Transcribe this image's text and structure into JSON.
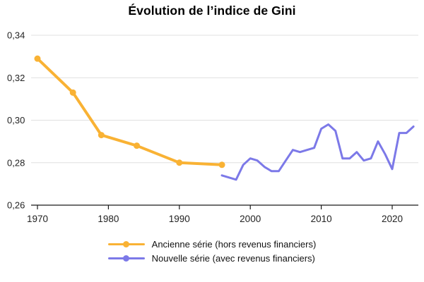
{
  "chart_data": {
    "type": "line",
    "title": "Évolution de l’indice de Gini",
    "xlabel": "",
    "ylabel": "",
    "ylim": [
      0.26,
      0.34
    ],
    "xlim": [
      1969,
      2024
    ],
    "grid": "horizontal",
    "legend_position": "bottom",
    "y_ticks": [
      {
        "label": "0,34",
        "value": 0.34
      },
      {
        "label": "0,32",
        "value": 0.32
      },
      {
        "label": "0,30",
        "value": 0.3
      },
      {
        "label": "0,28",
        "value": 0.28
      },
      {
        "label": "0,26",
        "value": 0.26
      }
    ],
    "x_ticks": [
      {
        "label": "1970",
        "value": 1970
      },
      {
        "label": "1980",
        "value": 1980
      },
      {
        "label": "1990",
        "value": 1990
      },
      {
        "label": "2000",
        "value": 2000
      },
      {
        "label": "2010",
        "value": 2010
      },
      {
        "label": "2020",
        "value": 2020
      }
    ],
    "series": [
      {
        "name": "Ancienne série (hors revenus financiers)",
        "color": "#F9B234",
        "markers": true,
        "x": [
          1970,
          1975,
          1979,
          1984,
          1990,
          1996
        ],
        "values": [
          0.329,
          0.313,
          0.293,
          0.288,
          0.28,
          0.279
        ]
      },
      {
        "name": "Nouvelle série (avec revenus financiers)",
        "color": "#7C79E8",
        "markers": false,
        "x": [
          1996,
          1997,
          1998,
          1999,
          2000,
          2001,
          2002,
          2003,
          2004,
          2005,
          2006,
          2007,
          2008,
          2009,
          2010,
          2011,
          2012,
          2013,
          2014,
          2015,
          2016,
          2017,
          2018,
          2019,
          2020,
          2021,
          2022,
          2023
        ],
        "values": [
          0.274,
          0.273,
          0.272,
          0.279,
          0.282,
          0.281,
          0.278,
          0.276,
          0.276,
          0.281,
          0.286,
          0.285,
          0.286,
          0.287,
          0.296,
          0.298,
          0.295,
          0.282,
          0.282,
          0.285,
          0.281,
          0.282,
          0.29,
          0.284,
          0.277,
          0.294,
          0.294,
          0.297
        ]
      }
    ],
    "colors": {
      "gridline": "#e0e0e0",
      "axis_line": "#1a1a1a",
      "tick_label": "#222222",
      "title": "#000000"
    }
  }
}
